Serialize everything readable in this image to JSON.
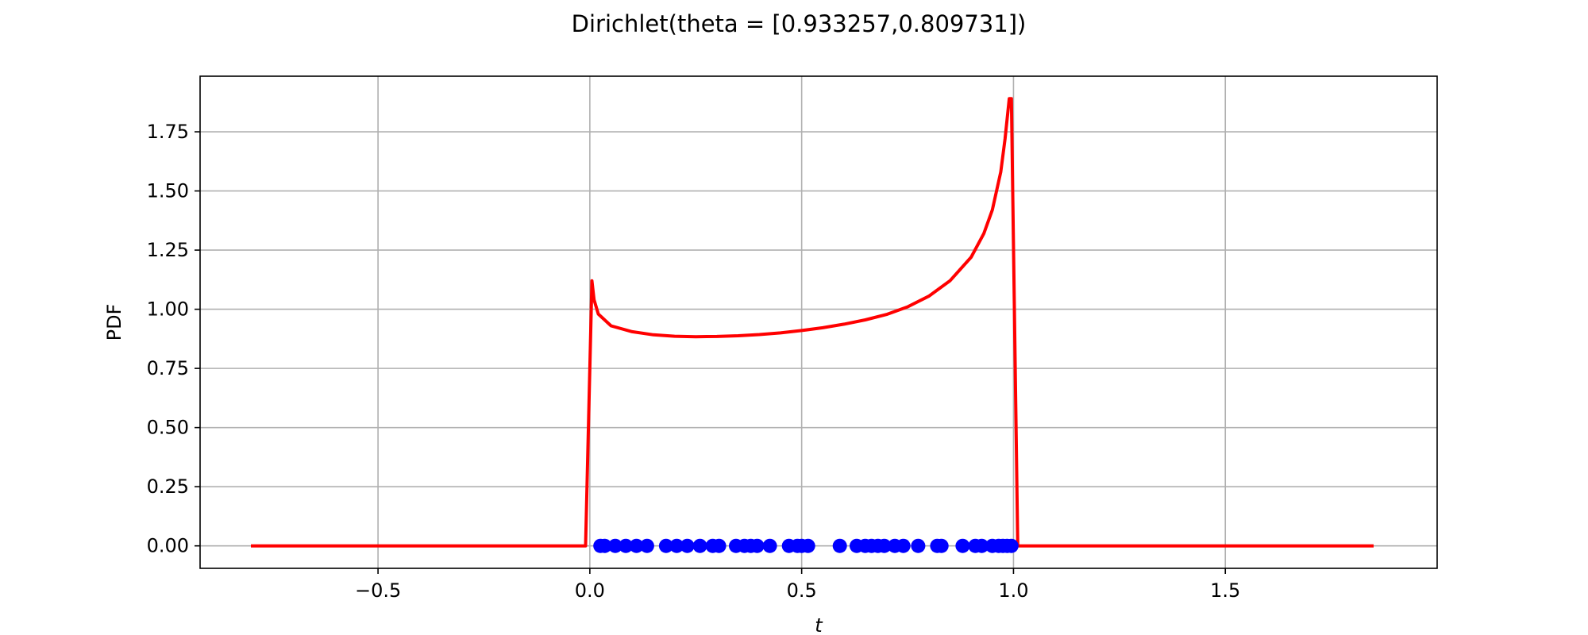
{
  "chart_data": {
    "type": "line",
    "title": "Dirichlet(theta = [0.933257,0.809731])",
    "xlabel": "t",
    "ylabel": "PDF",
    "xlim": [
      -0.92,
      2.0
    ],
    "ylim": [
      -0.095,
      1.985
    ],
    "grid": true,
    "x_ticks": [
      -0.5,
      0.0,
      0.5,
      1.0,
      1.5
    ],
    "x_tick_labels": [
      "−0.5",
      "0.0",
      "0.5",
      "1.0",
      "1.5"
    ],
    "y_ticks": [
      0.0,
      0.25,
      0.5,
      0.75,
      1.0,
      1.25,
      1.5,
      1.75
    ],
    "y_tick_labels": [
      "0.00",
      "0.25",
      "0.50",
      "0.75",
      "1.00",
      "1.25",
      "1.50",
      "1.75"
    ],
    "colors": {
      "pdf_line": "#ff0000",
      "samples": "#0000ff",
      "grid": "#b0b0b0",
      "axes": "#000000"
    },
    "series": [
      {
        "type": "line",
        "x": [
          -0.8,
          -0.01,
          0.005,
          0.01,
          0.02,
          0.05,
          0.1,
          0.15,
          0.2,
          0.25,
          0.3,
          0.35,
          0.4,
          0.45,
          0.5,
          0.55,
          0.6,
          0.65,
          0.7,
          0.75,
          0.8,
          0.85,
          0.9,
          0.93,
          0.95,
          0.97,
          0.98,
          0.99,
          0.995,
          1.01,
          1.85
        ],
        "y": [
          0.0,
          0.0,
          1.12,
          1.04,
          0.98,
          0.93,
          0.905,
          0.892,
          0.886,
          0.884,
          0.885,
          0.888,
          0.893,
          0.9,
          0.91,
          0.922,
          0.937,
          0.955,
          0.978,
          1.01,
          1.055,
          1.12,
          1.22,
          1.32,
          1.42,
          1.58,
          1.72,
          1.89,
          1.89,
          0.0,
          0.0
        ]
      },
      {
        "type": "scatter",
        "x": [
          0.025,
          0.035,
          0.06,
          0.085,
          0.11,
          0.135,
          0.18,
          0.205,
          0.23,
          0.26,
          0.29,
          0.305,
          0.345,
          0.365,
          0.38,
          0.395,
          0.425,
          0.47,
          0.49,
          0.5,
          0.515,
          0.59,
          0.63,
          0.65,
          0.665,
          0.68,
          0.695,
          0.72,
          0.74,
          0.775,
          0.82,
          0.83,
          0.88,
          0.91,
          0.925,
          0.95,
          0.965,
          0.975,
          0.985,
          0.995
        ],
        "y": [
          0,
          0,
          0,
          0,
          0,
          0,
          0,
          0,
          0,
          0,
          0,
          0,
          0,
          0,
          0,
          0,
          0,
          0,
          0,
          0,
          0,
          0,
          0,
          0,
          0,
          0,
          0,
          0,
          0,
          0,
          0,
          0,
          0,
          0,
          0,
          0,
          0,
          0,
          0,
          0
        ]
      }
    ]
  }
}
